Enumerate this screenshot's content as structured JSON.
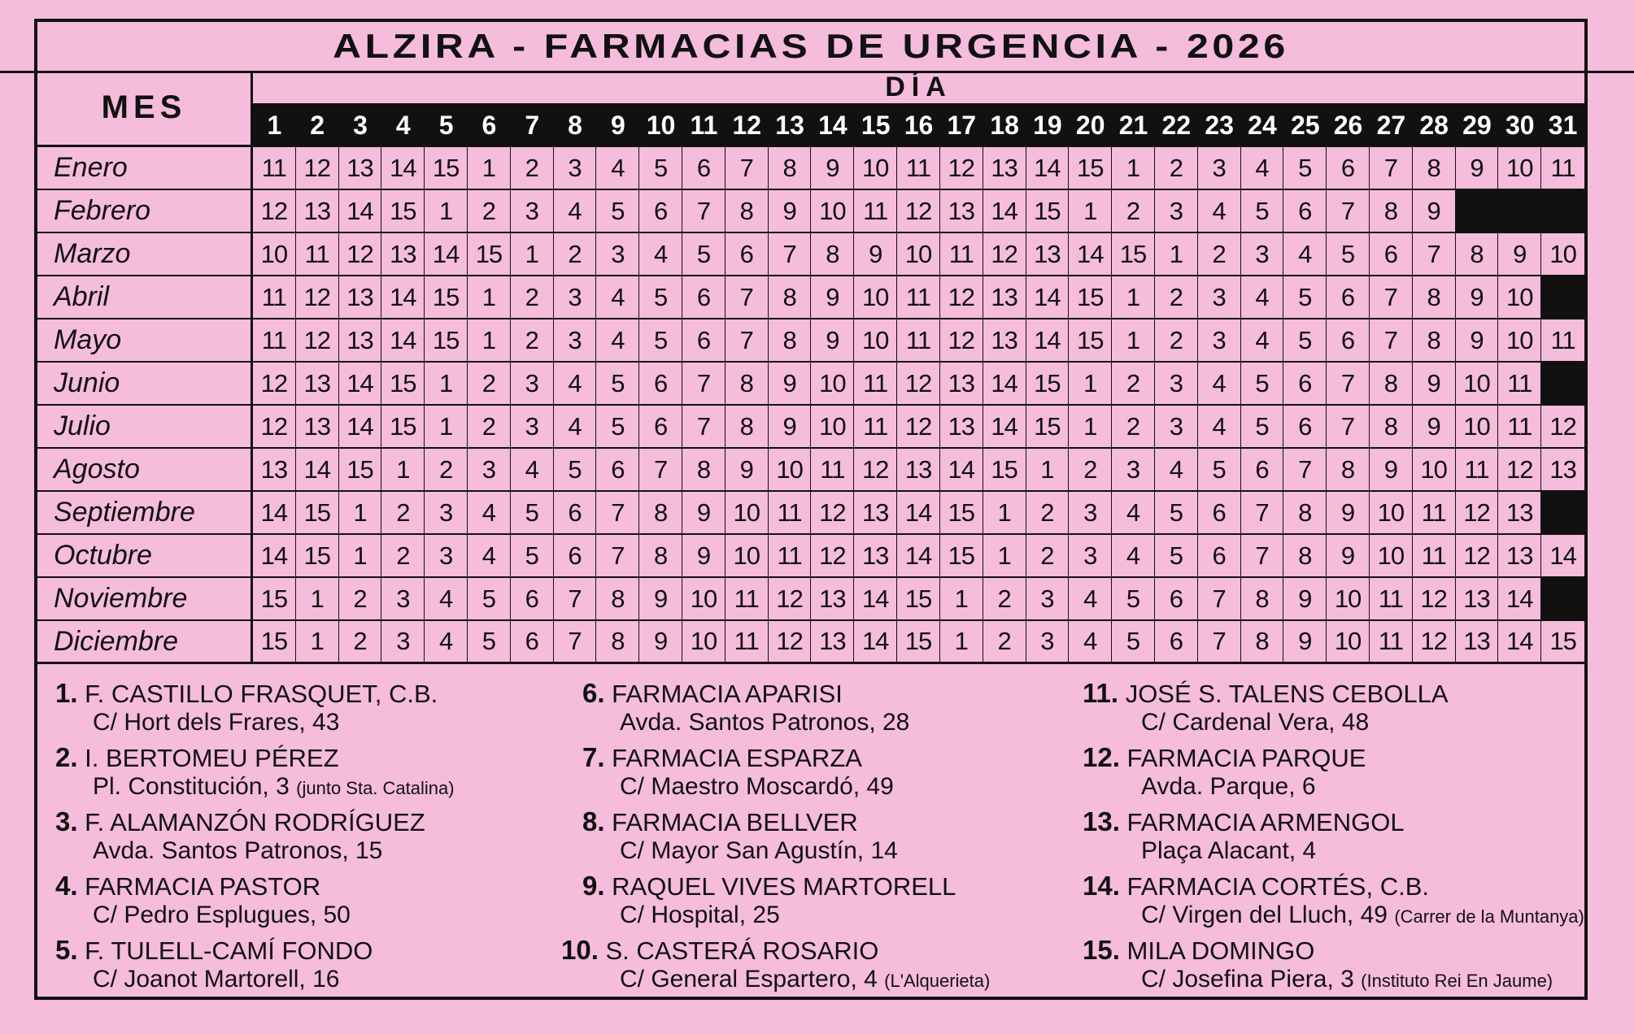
{
  "title": "ALZIRA  -  FARMACIAS DE URGENCIA  -  2026",
  "mes_label": "MES",
  "dia_label": "DÍA",
  "days": [
    "1",
    "2",
    "3",
    "4",
    "5",
    "6",
    "7",
    "8",
    "9",
    "10",
    "11",
    "12",
    "13",
    "14",
    "15",
    "16",
    "17",
    "18",
    "19",
    "20",
    "21",
    "22",
    "23",
    "24",
    "25",
    "26",
    "27",
    "28",
    "29",
    "30",
    "31"
  ],
  "colors": {
    "background": "#f6bcdc",
    "ink": "#111111"
  },
  "months": [
    {
      "name": "Enero",
      "values": [
        11,
        12,
        13,
        14,
        15,
        1,
        2,
        3,
        4,
        5,
        6,
        7,
        8,
        9,
        10,
        11,
        12,
        13,
        14,
        15,
        1,
        2,
        3,
        4,
        5,
        6,
        7,
        8,
        9,
        10,
        11
      ]
    },
    {
      "name": "Febrero",
      "values": [
        12,
        13,
        14,
        15,
        1,
        2,
        3,
        4,
        5,
        6,
        7,
        8,
        9,
        10,
        11,
        12,
        13,
        14,
        15,
        1,
        2,
        3,
        4,
        5,
        6,
        7,
        8,
        9
      ]
    },
    {
      "name": "Marzo",
      "values": [
        10,
        11,
        12,
        13,
        14,
        15,
        1,
        2,
        3,
        4,
        5,
        6,
        7,
        8,
        9,
        10,
        11,
        12,
        13,
        14,
        15,
        1,
        2,
        3,
        4,
        5,
        6,
        7,
        8,
        9,
        10
      ]
    },
    {
      "name": "Abril",
      "values": [
        11,
        12,
        13,
        14,
        15,
        1,
        2,
        3,
        4,
        5,
        6,
        7,
        8,
        9,
        10,
        11,
        12,
        13,
        14,
        15,
        1,
        2,
        3,
        4,
        5,
        6,
        7,
        8,
        9,
        10
      ]
    },
    {
      "name": "Mayo",
      "values": [
        11,
        12,
        13,
        14,
        15,
        1,
        2,
        3,
        4,
        5,
        6,
        7,
        8,
        9,
        10,
        11,
        12,
        13,
        14,
        15,
        1,
        2,
        3,
        4,
        5,
        6,
        7,
        8,
        9,
        10,
        11
      ]
    },
    {
      "name": "Junio",
      "values": [
        12,
        13,
        14,
        15,
        1,
        2,
        3,
        4,
        5,
        6,
        7,
        8,
        9,
        10,
        11,
        12,
        13,
        14,
        15,
        1,
        2,
        3,
        4,
        5,
        6,
        7,
        8,
        9,
        10,
        11
      ]
    },
    {
      "name": "Julio",
      "values": [
        12,
        13,
        14,
        15,
        1,
        2,
        3,
        4,
        5,
        6,
        7,
        8,
        9,
        10,
        11,
        12,
        13,
        14,
        15,
        1,
        2,
        3,
        4,
        5,
        6,
        7,
        8,
        9,
        10,
        11,
        12
      ]
    },
    {
      "name": "Agosto",
      "values": [
        13,
        14,
        15,
        1,
        2,
        3,
        4,
        5,
        6,
        7,
        8,
        9,
        10,
        11,
        12,
        13,
        14,
        15,
        1,
        2,
        3,
        4,
        5,
        6,
        7,
        8,
        9,
        10,
        11,
        12,
        13
      ]
    },
    {
      "name": "Septiembre",
      "values": [
        14,
        15,
        1,
        2,
        3,
        4,
        5,
        6,
        7,
        8,
        9,
        10,
        11,
        12,
        13,
        14,
        15,
        1,
        2,
        3,
        4,
        5,
        6,
        7,
        8,
        9,
        10,
        11,
        12,
        13
      ]
    },
    {
      "name": "Octubre",
      "values": [
        14,
        15,
        1,
        2,
        3,
        4,
        5,
        6,
        7,
        8,
        9,
        10,
        11,
        12,
        13,
        14,
        15,
        1,
        2,
        3,
        4,
        5,
        6,
        7,
        8,
        9,
        10,
        11,
        12,
        13,
        14
      ]
    },
    {
      "name": "Noviembre",
      "values": [
        15,
        1,
        2,
        3,
        4,
        5,
        6,
        7,
        8,
        9,
        10,
        11,
        12,
        13,
        14,
        15,
        1,
        2,
        3,
        4,
        5,
        6,
        7,
        8,
        9,
        10,
        11,
        12,
        13,
        14
      ]
    },
    {
      "name": "Diciembre",
      "values": [
        15,
        1,
        2,
        3,
        4,
        5,
        6,
        7,
        8,
        9,
        10,
        11,
        12,
        13,
        14,
        15,
        1,
        2,
        3,
        4,
        5,
        6,
        7,
        8,
        9,
        10,
        11,
        12,
        13,
        14,
        15
      ]
    }
  ],
  "pharmacies": [
    {
      "num": "1.",
      "name": "F. CASTILLO FRASQUET, C.B.",
      "address": "C/ Hort dels Frares, 43",
      "note": ""
    },
    {
      "num": "2.",
      "name": "I. BERTOMEU PÉREZ",
      "address": "Pl. Constitución, 3",
      "note": "(junto Sta. Catalina)"
    },
    {
      "num": "3.",
      "name": "F. ALAMANZÓN RODRÍGUEZ",
      "address": "Avda. Santos Patronos, 15",
      "note": ""
    },
    {
      "num": "4.",
      "name": "FARMACIA PASTOR",
      "address": "C/ Pedro Esplugues, 50",
      "note": ""
    },
    {
      "num": "5.",
      "name": "F. TULELL-CAMÍ FONDO",
      "address": "C/ Joanot Martorell, 16",
      "note": ""
    },
    {
      "num": "6.",
      "name": "FARMACIA APARISI",
      "address": "Avda. Santos Patronos, 28",
      "note": ""
    },
    {
      "num": "7.",
      "name": "FARMACIA ESPARZA",
      "address": "C/ Maestro Moscardó, 49",
      "note": ""
    },
    {
      "num": "8.",
      "name": "FARMACIA BELLVER",
      "address": "C/ Mayor San Agustín, 14",
      "note": ""
    },
    {
      "num": "9.",
      "name": "RAQUEL VIVES MARTORELL",
      "address": "C/ Hospital, 25",
      "note": ""
    },
    {
      "num": "10.",
      "name": "S. CASTERÁ ROSARIO",
      "address": "C/ General Espartero, 4",
      "note": "(L'Alquerieta)"
    },
    {
      "num": "11.",
      "name": "JOSÉ S. TALENS CEBOLLA",
      "address": "C/ Cardenal Vera, 48",
      "note": ""
    },
    {
      "num": "12.",
      "name": "FARMACIA PARQUE",
      "address": "Avda. Parque, 6",
      "note": ""
    },
    {
      "num": "13.",
      "name": "FARMACIA ARMENGOL",
      "address": "Plaça Alacant, 4",
      "note": ""
    },
    {
      "num": "14.",
      "name": "FARMACIA CORTÉS, C.B.",
      "address": "C/ Virgen del Lluch, 49",
      "note": "(Carrer de la Muntanya)"
    },
    {
      "num": "15.",
      "name": "MILA DOMINGO",
      "address": "C/ Josefina Piera, 3",
      "note": "(Instituto Rei En Jaume)"
    }
  ]
}
